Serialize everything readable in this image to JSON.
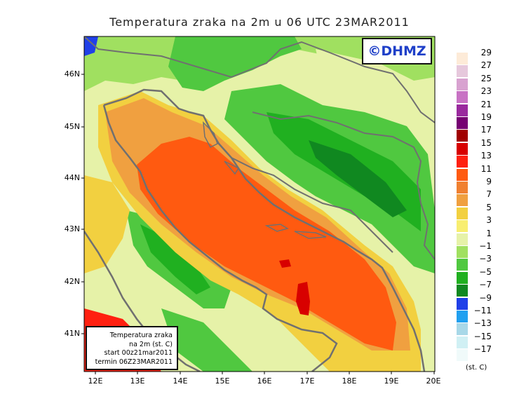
{
  "title": "Temperatura zraka na 2m u 06 UTC 23MAR2011",
  "logo_text": "©DHMZ",
  "info_box": {
    "line1": "Temperatura zraka",
    "line2": "na 2m (st. C)",
    "line3": "start 00z21mar2011",
    "line4": "termin 06Z23MAR2011"
  },
  "y_ticks": [
    "46N",
    "45N",
    "44N",
    "43N",
    "42N",
    "41N"
  ],
  "x_ticks": [
    "12E",
    "13E",
    "14E",
    "15E",
    "16E",
    "17E",
    "18E",
    "19E",
    "20E"
  ],
  "legend": {
    "labels": [
      "29",
      "27",
      "25",
      "23",
      "21",
      "19",
      "17",
      "15",
      "13",
      "11",
      "9",
      "7",
      "5",
      "3",
      "1",
      "−1",
      "−3",
      "−5",
      "−7",
      "−9",
      "−11",
      "−13",
      "−15",
      "−17"
    ],
    "colors": [
      "#fdebd8",
      "#e6c8dc",
      "#d8a2d0",
      "#c872c4",
      "#9a2a9e",
      "#760072",
      "#a00000",
      "#d80000",
      "#ff2010",
      "#ff5a10",
      "#f08030",
      "#f0a040",
      "#f2d040",
      "#f8ee70",
      "#e6f2a8",
      "#a0e060",
      "#50c840",
      "#20b020",
      "#108820",
      "#2040e8",
      "#20a0f0",
      "#a8d8e8",
      "#d0f0f4",
      "#f0fafa"
    ],
    "unit": "(st. C)"
  }
}
